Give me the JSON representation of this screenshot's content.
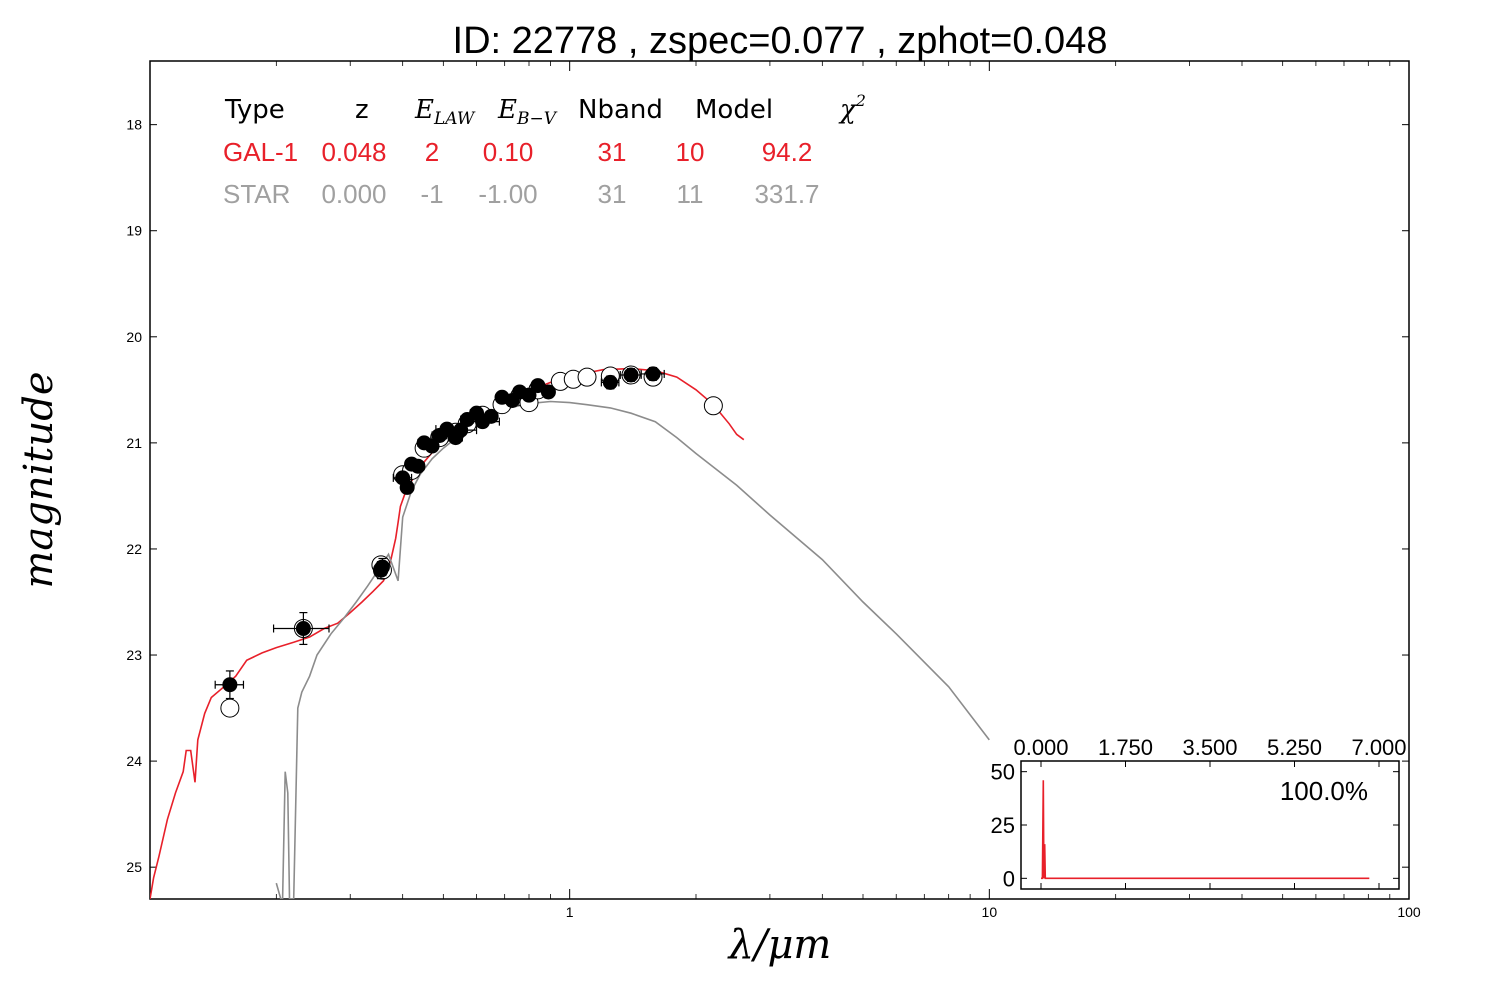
{
  "title": "ID:  22778 , zspec=0.077 , zphot=0.048",
  "colors": {
    "galaxy": "#e8202a",
    "star": "#8c8c8c",
    "points": "#000000",
    "frame": "#000000"
  },
  "fit_table": {
    "columns": [
      "Type",
      "z",
      "E_LAW",
      "E_B−V",
      "Nband",
      "Model",
      "χ2"
    ],
    "rows": [
      {
        "type": "GAL-1",
        "z": "0.048",
        "e_law": "2",
        "e_bv": "0.10",
        "nband": "31",
        "model": "10",
        "chi2": "94.2",
        "color": "#e8202a"
      },
      {
        "type": "STAR",
        "z": "0.000",
        "e_law": "-1",
        "e_bv": "-1.00",
        "nband": "31",
        "model": "11",
        "chi2": "331.7",
        "color": "#a0a0a0"
      }
    ]
  },
  "chart_data": [
    {
      "type": "line",
      "xlabel": "λ/μm",
      "ylabel": "magnitude",
      "xscale": "log",
      "xlim": [
        0.1,
        100
      ],
      "ylim": [
        25.3,
        17.4
      ],
      "y_inverted": true,
      "x_ticks": [
        "1",
        "10",
        "100"
      ],
      "y_ticks": [
        "18",
        "19",
        "20",
        "21",
        "22",
        "23",
        "24",
        "25"
      ],
      "series": [
        {
          "kind": "galaxy_template",
          "color": "#e8202a",
          "points": [
            [
              0.1,
              25.3
            ],
            [
              0.102,
              25.1
            ],
            [
              0.105,
              24.9
            ],
            [
              0.11,
              24.55
            ],
            [
              0.115,
              24.3
            ],
            [
              0.12,
              24.1
            ],
            [
              0.122,
              23.9
            ],
            [
              0.125,
              23.9
            ],
            [
              0.128,
              24.2
            ],
            [
              0.13,
              23.8
            ],
            [
              0.135,
              23.55
            ],
            [
              0.14,
              23.4
            ],
            [
              0.15,
              23.3
            ],
            [
              0.16,
              23.2
            ],
            [
              0.17,
              23.05
            ],
            [
              0.185,
              22.98
            ],
            [
              0.2,
              22.93
            ],
            [
              0.22,
              22.88
            ],
            [
              0.24,
              22.83
            ],
            [
              0.26,
              22.75
            ],
            [
              0.28,
              22.7
            ],
            [
              0.3,
              22.6
            ],
            [
              0.32,
              22.5
            ],
            [
              0.34,
              22.4
            ],
            [
              0.36,
              22.3
            ],
            [
              0.375,
              22.1
            ],
            [
              0.385,
              21.9
            ],
            [
              0.39,
              21.75
            ],
            [
              0.395,
              21.6
            ],
            [
              0.41,
              21.42
            ],
            [
              0.43,
              21.3
            ],
            [
              0.45,
              21.18
            ],
            [
              0.48,
              21.05
            ],
            [
              0.52,
              20.95
            ],
            [
              0.56,
              20.88
            ],
            [
              0.6,
              20.8
            ],
            [
              0.65,
              20.72
            ],
            [
              0.7,
              20.64
            ],
            [
              0.75,
              20.57
            ],
            [
              0.8,
              20.51
            ],
            [
              0.9,
              20.43
            ],
            [
              1.0,
              20.38
            ],
            [
              1.1,
              20.34
            ],
            [
              1.2,
              20.31
            ],
            [
              1.4,
              20.3
            ],
            [
              1.6,
              20.32
            ],
            [
              1.8,
              20.38
            ],
            [
              2.0,
              20.5
            ],
            [
              2.2,
              20.64
            ],
            [
              2.4,
              20.82
            ],
            [
              2.5,
              20.92
            ],
            [
              2.6,
              20.97
            ]
          ]
        },
        {
          "kind": "star_template",
          "color": "#8c8c8c",
          "points": [
            [
              0.2,
              25.15
            ],
            [
              0.205,
              25.3
            ],
            [
              0.207,
              25.3
            ],
            [
              0.21,
              24.1
            ],
            [
              0.213,
              24.3
            ],
            [
              0.215,
              25.3
            ],
            [
              0.22,
              25.3
            ],
            [
              0.225,
              23.5
            ],
            [
              0.23,
              23.35
            ],
            [
              0.24,
              23.2
            ],
            [
              0.25,
              23.0
            ],
            [
              0.27,
              22.8
            ],
            [
              0.29,
              22.65
            ],
            [
              0.31,
              22.5
            ],
            [
              0.33,
              22.35
            ],
            [
              0.35,
              22.2
            ],
            [
              0.37,
              22.05
            ],
            [
              0.39,
              22.3
            ],
            [
              0.4,
              21.7
            ],
            [
              0.42,
              21.45
            ],
            [
              0.44,
              21.3
            ],
            [
              0.47,
              21.15
            ],
            [
              0.5,
              21.05
            ],
            [
              0.55,
              20.92
            ],
            [
              0.6,
              20.82
            ],
            [
              0.65,
              20.74
            ],
            [
              0.7,
              20.68
            ],
            [
              0.8,
              20.63
            ],
            [
              0.9,
              20.61
            ],
            [
              1.0,
              20.62
            ],
            [
              1.1,
              20.64
            ],
            [
              1.25,
              20.67
            ],
            [
              1.4,
              20.72
            ],
            [
              1.6,
              20.8
            ],
            [
              1.8,
              20.95
            ],
            [
              2.0,
              21.1
            ],
            [
              2.5,
              21.4
            ],
            [
              3,
              21.68
            ],
            [
              4,
              22.1
            ],
            [
              5,
              22.5
            ],
            [
              6,
              22.8
            ],
            [
              8,
              23.3
            ],
            [
              10,
              23.8
            ]
          ]
        }
      ],
      "observed_points": [
        {
          "x": 0.155,
          "y": 23.28,
          "xerr": 0.012,
          "yerr": 0.13
        },
        {
          "x": 0.232,
          "y": 22.75,
          "xerr": 0.035,
          "yerr": 0.15
        },
        {
          "x": 0.355,
          "y": 22.2,
          "xerr": 0.006,
          "yerr": 0.08
        },
        {
          "x": 0.358,
          "y": 22.17,
          "xerr": 0.006,
          "yerr": 0.08
        },
        {
          "x": 0.4,
          "y": 21.33,
          "xerr": 0.02,
          "yerr": 0.03
        },
        {
          "x": 0.41,
          "y": 21.42,
          "xerr": 0.01,
          "yerr": 0.03
        },
        {
          "x": 0.42,
          "y": 21.2,
          "xerr": 0.01,
          "yerr": 0.03
        },
        {
          "x": 0.435,
          "y": 21.22,
          "xerr": 0.015,
          "yerr": 0.03
        },
        {
          "x": 0.45,
          "y": 21.0,
          "xerr": 0.015,
          "yerr": 0.03
        },
        {
          "x": 0.47,
          "y": 21.03,
          "xerr": 0.015,
          "yerr": 0.03
        },
        {
          "x": 0.49,
          "y": 20.93,
          "xerr": 0.02,
          "yerr": 0.03
        },
        {
          "x": 0.51,
          "y": 20.87,
          "xerr": 0.03,
          "yerr": 0.03
        },
        {
          "x": 0.535,
          "y": 20.95,
          "xerr": 0.02,
          "yerr": 0.03
        },
        {
          "x": 0.55,
          "y": 20.88,
          "xerr": 0.05,
          "yerr": 0.03
        },
        {
          "x": 0.57,
          "y": 20.78,
          "xerr": 0.02,
          "yerr": 0.03
        },
        {
          "x": 0.6,
          "y": 20.72,
          "xerr": 0.02,
          "yerr": 0.03
        },
        {
          "x": 0.62,
          "y": 20.8,
          "xerr": 0.06,
          "yerr": 0.03
        },
        {
          "x": 0.65,
          "y": 20.75,
          "xerr": 0.02,
          "yerr": 0.03
        },
        {
          "x": 0.69,
          "y": 20.57,
          "xerr": 0.02,
          "yerr": 0.03
        },
        {
          "x": 0.73,
          "y": 20.6,
          "xerr": 0.02,
          "yerr": 0.03
        },
        {
          "x": 0.76,
          "y": 20.52,
          "xerr": 0.02,
          "yerr": 0.03
        },
        {
          "x": 0.8,
          "y": 20.55,
          "xerr": 0.02,
          "yerr": 0.03
        },
        {
          "x": 0.84,
          "y": 20.46,
          "xerr": 0.02,
          "yerr": 0.03
        },
        {
          "x": 0.89,
          "y": 20.52,
          "xerr": 0.02,
          "yerr": 0.03
        },
        {
          "x": 1.25,
          "y": 20.43,
          "xerr": 0.06,
          "yerr": 0.06
        },
        {
          "x": 1.4,
          "y": 20.36,
          "xerr": 0.08,
          "yerr": 0.06
        },
        {
          "x": 1.58,
          "y": 20.35,
          "xerr": 0.1,
          "yerr": 0.06
        }
      ],
      "model_points": [
        {
          "x": 0.155,
          "y": 23.5
        },
        {
          "x": 0.232,
          "y": 22.75
        },
        {
          "x": 0.355,
          "y": 22.15
        },
        {
          "x": 0.358,
          "y": 22.2
        },
        {
          "x": 0.4,
          "y": 21.3
        },
        {
          "x": 0.42,
          "y": 21.26
        },
        {
          "x": 0.45,
          "y": 21.05
        },
        {
          "x": 0.49,
          "y": 20.95
        },
        {
          "x": 0.535,
          "y": 20.9
        },
        {
          "x": 0.57,
          "y": 20.82
        },
        {
          "x": 0.62,
          "y": 20.74
        },
        {
          "x": 0.69,
          "y": 20.64
        },
        {
          "x": 0.76,
          "y": 20.56
        },
        {
          "x": 0.8,
          "y": 20.62
        },
        {
          "x": 0.84,
          "y": 20.5
        },
        {
          "x": 0.95,
          "y": 20.42
        },
        {
          "x": 1.02,
          "y": 20.4
        },
        {
          "x": 1.1,
          "y": 20.38
        },
        {
          "x": 1.25,
          "y": 20.37
        },
        {
          "x": 1.4,
          "y": 20.36
        },
        {
          "x": 1.58,
          "y": 20.38
        },
        {
          "x": 2.2,
          "y": 20.65
        }
      ]
    },
    {
      "type": "line",
      "title": "",
      "label": "100.0%",
      "xlim": [
        0,
        7
      ],
      "ylim": [
        -5,
        55
      ],
      "x_ticks": [
        "0.000",
        "1.750",
        "3.500",
        "5.250",
        "7.000"
      ],
      "y_ticks": [
        "0",
        "25",
        "50"
      ],
      "series": [
        {
          "color": "#e8202a",
          "points": [
            [
              0.0,
              0.0
            ],
            [
              0.03,
              0.0
            ],
            [
              0.048,
              46
            ],
            [
              0.06,
              0.0
            ],
            [
              0.077,
              16
            ],
            [
              0.09,
              0.0
            ],
            [
              6.8,
              0.0
            ]
          ]
        }
      ]
    }
  ]
}
